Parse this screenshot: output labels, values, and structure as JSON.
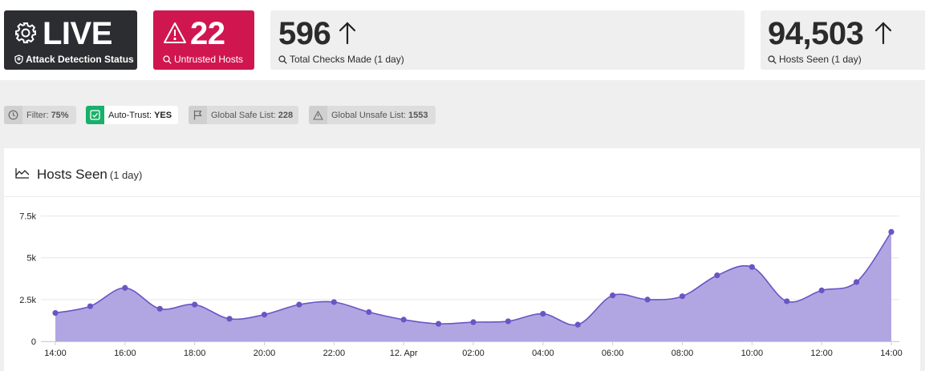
{
  "stats": {
    "live": {
      "value": "LIVE",
      "label": "Attack Detection Status",
      "icon": "gear-icon"
    },
    "untrusted": {
      "value": "22",
      "label": "Untrusted Hosts",
      "icon": "warning-icon"
    },
    "checks": {
      "value": "596",
      "label": "Total Checks Made (1 day)",
      "trend": "up-arrow-icon"
    },
    "hosts": {
      "value": "94,503",
      "label": "Hosts Seen (1 day)",
      "trend": "up-arrow-icon"
    }
  },
  "filters": {
    "filter": {
      "label": "Filter:",
      "value": "75%"
    },
    "auto_trust": {
      "label": "Auto-Trust:",
      "value": "YES"
    },
    "safe_list": {
      "label": "Global Safe List:",
      "value": "228"
    },
    "unsafe_list": {
      "label": "Global Unsafe List:",
      "value": "1553"
    }
  },
  "chart_panel": {
    "title": "Hosts Seen",
    "subtitle": "(1 day)"
  },
  "colors": {
    "live_bg": "#2b2d30",
    "untrusted_bg": "#d0164f",
    "line": "#6a55c4",
    "area": "#b1a6e2",
    "auto_trust_green": "#18b06a"
  },
  "chart_data": {
    "type": "area",
    "title": "Hosts Seen",
    "xlabel": "",
    "ylabel": "",
    "ylim": [
      0,
      8200
    ],
    "y_ticks": [
      "0",
      "2.5k",
      "5k",
      "7.5k"
    ],
    "y_tick_values": [
      0,
      2500,
      5000,
      7500
    ],
    "x_ticks": [
      "14:00",
      "16:00",
      "18:00",
      "20:00",
      "22:00",
      "12. Apr",
      "02:00",
      "04:00",
      "06:00",
      "08:00",
      "10:00",
      "12:00",
      "14:00"
    ],
    "grid": "horizontal",
    "legend": "none",
    "x": [
      "14:00",
      "15:00",
      "16:00",
      "17:00",
      "18:00",
      "19:00",
      "20:00",
      "21:00",
      "22:00",
      "23:00",
      "00:00",
      "01:00",
      "02:00",
      "03:00",
      "04:00",
      "05:00",
      "06:00",
      "07:00",
      "08:00",
      "09:00",
      "10:00",
      "11:00",
      "12:00",
      "13:00",
      "14:00"
    ],
    "series": [
      {
        "values": [
          1700,
          2100,
          3200,
          1950,
          2200,
          1350,
          1600,
          2200,
          2350,
          1750,
          1300,
          1050,
          1150,
          1200,
          1650,
          1000,
          2750,
          2500,
          2700,
          3950,
          4450,
          2400,
          3050,
          3550,
          6550
        ]
      }
    ]
  }
}
